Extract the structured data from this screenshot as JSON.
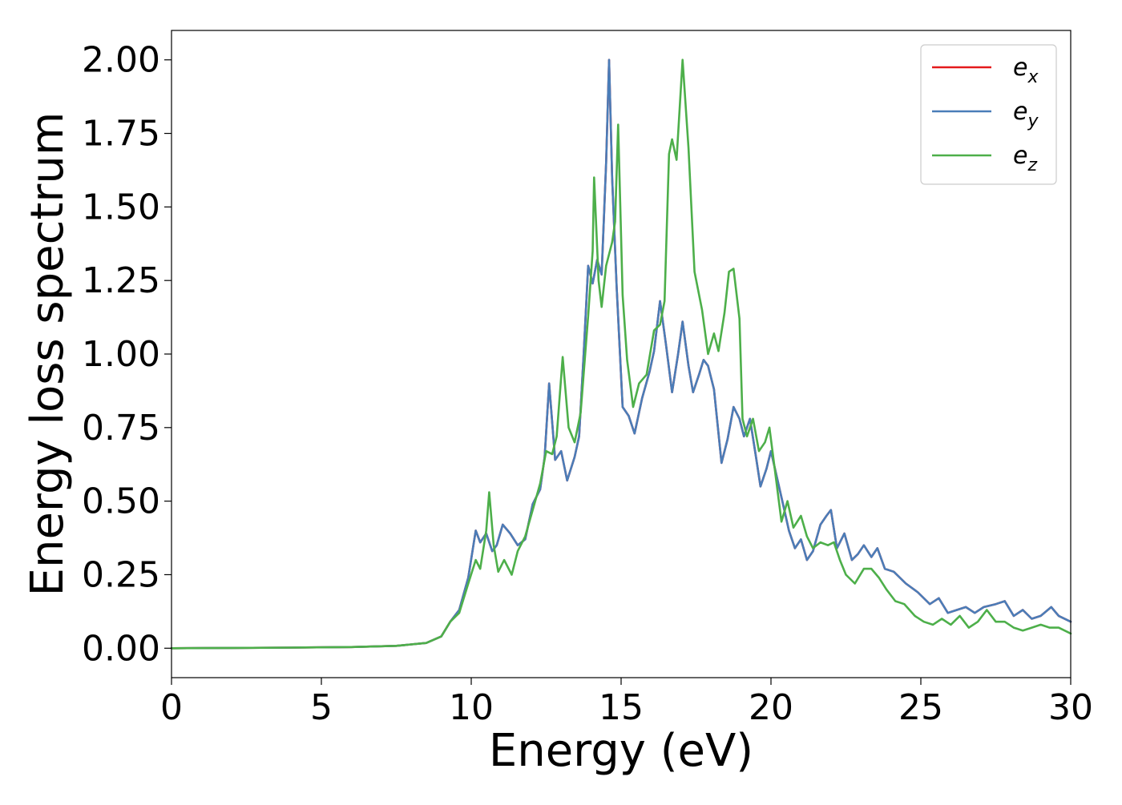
{
  "chart_data": {
    "type": "line",
    "title": "",
    "xlabel": "Energy (eV)",
    "ylabel": "Energy loss spectrum",
    "xlim": [
      0,
      30
    ],
    "ylim": [
      -0.1,
      2.1
    ],
    "xticks": [
      "0",
      "5",
      "10",
      "15",
      "20",
      "25",
      "30"
    ],
    "yticks": [
      "0.00",
      "0.25",
      "0.50",
      "0.75",
      "1.00",
      "1.25",
      "1.50",
      "1.75",
      "2.00"
    ],
    "grid": false,
    "legend_position": "top-right",
    "series": [
      {
        "name": "e_x",
        "legend_main": "e",
        "legend_sub": "x",
        "color": "#e41a1c",
        "points": [
          [
            0,
            0
          ],
          [
            2,
            0.001
          ],
          [
            4,
            0.002
          ],
          [
            6,
            0.004
          ],
          [
            7.5,
            0.008
          ],
          [
            8.5,
            0.018
          ],
          [
            9.0,
            0.04
          ],
          [
            9.3,
            0.09
          ],
          [
            9.6,
            0.13
          ],
          [
            9.9,
            0.24
          ],
          [
            10.15,
            0.4
          ],
          [
            10.3,
            0.36
          ],
          [
            10.5,
            0.39
          ],
          [
            10.7,
            0.33
          ],
          [
            10.85,
            0.35
          ],
          [
            11.05,
            0.42
          ],
          [
            11.3,
            0.39
          ],
          [
            11.55,
            0.35
          ],
          [
            11.8,
            0.37
          ],
          [
            12.05,
            0.49
          ],
          [
            12.3,
            0.54
          ],
          [
            12.45,
            0.65
          ],
          [
            12.6,
            0.9
          ],
          [
            12.8,
            0.64
          ],
          [
            13.0,
            0.67
          ],
          [
            13.2,
            0.57
          ],
          [
            13.45,
            0.65
          ],
          [
            13.6,
            0.72
          ],
          [
            13.75,
            1.0
          ],
          [
            13.9,
            1.3
          ],
          [
            14.05,
            1.24
          ],
          [
            14.2,
            1.32
          ],
          [
            14.35,
            1.27
          ],
          [
            14.5,
            1.65
          ],
          [
            14.6,
            2.0
          ],
          [
            14.7,
            1.6
          ],
          [
            14.85,
            1.23
          ],
          [
            15.05,
            0.82
          ],
          [
            15.25,
            0.79
          ],
          [
            15.45,
            0.73
          ],
          [
            15.7,
            0.85
          ],
          [
            15.95,
            0.94
          ],
          [
            16.1,
            1.01
          ],
          [
            16.3,
            1.18
          ],
          [
            16.5,
            1.03
          ],
          [
            16.7,
            0.87
          ],
          [
            16.9,
            1.0
          ],
          [
            17.05,
            1.11
          ],
          [
            17.25,
            0.96
          ],
          [
            17.4,
            0.87
          ],
          [
            17.6,
            0.93
          ],
          [
            17.75,
            0.98
          ],
          [
            17.9,
            0.96
          ],
          [
            18.1,
            0.88
          ],
          [
            18.35,
            0.63
          ],
          [
            18.55,
            0.71
          ],
          [
            18.75,
            0.82
          ],
          [
            18.95,
            0.78
          ],
          [
            19.1,
            0.72
          ],
          [
            19.3,
            0.78
          ],
          [
            19.5,
            0.65
          ],
          [
            19.65,
            0.55
          ],
          [
            19.85,
            0.61
          ],
          [
            20.0,
            0.67
          ],
          [
            20.2,
            0.58
          ],
          [
            20.4,
            0.49
          ],
          [
            20.6,
            0.4
          ],
          [
            20.8,
            0.34
          ],
          [
            21.0,
            0.37
          ],
          [
            21.2,
            0.3
          ],
          [
            21.4,
            0.33
          ],
          [
            21.65,
            0.42
          ],
          [
            21.85,
            0.45
          ],
          [
            22.0,
            0.47
          ],
          [
            22.2,
            0.34
          ],
          [
            22.45,
            0.39
          ],
          [
            22.7,
            0.3
          ],
          [
            22.9,
            0.32
          ],
          [
            23.1,
            0.35
          ],
          [
            23.35,
            0.31
          ],
          [
            23.55,
            0.34
          ],
          [
            23.8,
            0.27
          ],
          [
            24.1,
            0.26
          ],
          [
            24.5,
            0.22
          ],
          [
            24.9,
            0.19
          ],
          [
            25.3,
            0.15
          ],
          [
            25.6,
            0.17
          ],
          [
            25.9,
            0.12
          ],
          [
            26.2,
            0.13
          ],
          [
            26.5,
            0.14
          ],
          [
            26.8,
            0.12
          ],
          [
            27.1,
            0.14
          ],
          [
            27.5,
            0.15
          ],
          [
            27.8,
            0.16
          ],
          [
            28.1,
            0.11
          ],
          [
            28.4,
            0.13
          ],
          [
            28.7,
            0.1
          ],
          [
            29.0,
            0.11
          ],
          [
            29.35,
            0.14
          ],
          [
            29.6,
            0.11
          ],
          [
            30.0,
            0.09
          ]
        ]
      },
      {
        "name": "e_y",
        "legend_main": "e",
        "legend_sub": "y",
        "color": "#4a7db8",
        "points": [
          [
            0,
            0
          ],
          [
            2,
            0.001
          ],
          [
            4,
            0.002
          ],
          [
            6,
            0.004
          ],
          [
            7.5,
            0.008
          ],
          [
            8.5,
            0.018
          ],
          [
            9.0,
            0.04
          ],
          [
            9.3,
            0.09
          ],
          [
            9.6,
            0.13
          ],
          [
            9.9,
            0.24
          ],
          [
            10.15,
            0.4
          ],
          [
            10.3,
            0.36
          ],
          [
            10.5,
            0.39
          ],
          [
            10.7,
            0.33
          ],
          [
            10.85,
            0.35
          ],
          [
            11.05,
            0.42
          ],
          [
            11.3,
            0.39
          ],
          [
            11.55,
            0.35
          ],
          [
            11.8,
            0.37
          ],
          [
            12.05,
            0.49
          ],
          [
            12.3,
            0.54
          ],
          [
            12.45,
            0.65
          ],
          [
            12.6,
            0.9
          ],
          [
            12.8,
            0.64
          ],
          [
            13.0,
            0.67
          ],
          [
            13.2,
            0.57
          ],
          [
            13.45,
            0.65
          ],
          [
            13.6,
            0.72
          ],
          [
            13.75,
            1.0
          ],
          [
            13.9,
            1.3
          ],
          [
            14.05,
            1.24
          ],
          [
            14.2,
            1.32
          ],
          [
            14.35,
            1.27
          ],
          [
            14.5,
            1.65
          ],
          [
            14.6,
            2.0
          ],
          [
            14.7,
            1.6
          ],
          [
            14.85,
            1.23
          ],
          [
            15.05,
            0.82
          ],
          [
            15.25,
            0.79
          ],
          [
            15.45,
            0.73
          ],
          [
            15.7,
            0.85
          ],
          [
            15.95,
            0.94
          ],
          [
            16.1,
            1.01
          ],
          [
            16.3,
            1.18
          ],
          [
            16.5,
            1.03
          ],
          [
            16.7,
            0.87
          ],
          [
            16.9,
            1.0
          ],
          [
            17.05,
            1.11
          ],
          [
            17.25,
            0.96
          ],
          [
            17.4,
            0.87
          ],
          [
            17.6,
            0.93
          ],
          [
            17.75,
            0.98
          ],
          [
            17.9,
            0.96
          ],
          [
            18.1,
            0.88
          ],
          [
            18.35,
            0.63
          ],
          [
            18.55,
            0.71
          ],
          [
            18.75,
            0.82
          ],
          [
            18.95,
            0.78
          ],
          [
            19.1,
            0.72
          ],
          [
            19.3,
            0.78
          ],
          [
            19.5,
            0.65
          ],
          [
            19.65,
            0.55
          ],
          [
            19.85,
            0.61
          ],
          [
            20.0,
            0.67
          ],
          [
            20.2,
            0.58
          ],
          [
            20.4,
            0.49
          ],
          [
            20.6,
            0.4
          ],
          [
            20.8,
            0.34
          ],
          [
            21.0,
            0.37
          ],
          [
            21.2,
            0.3
          ],
          [
            21.4,
            0.33
          ],
          [
            21.65,
            0.42
          ],
          [
            21.85,
            0.45
          ],
          [
            22.0,
            0.47
          ],
          [
            22.2,
            0.34
          ],
          [
            22.45,
            0.39
          ],
          [
            22.7,
            0.3
          ],
          [
            22.9,
            0.32
          ],
          [
            23.1,
            0.35
          ],
          [
            23.35,
            0.31
          ],
          [
            23.55,
            0.34
          ],
          [
            23.8,
            0.27
          ],
          [
            24.1,
            0.26
          ],
          [
            24.5,
            0.22
          ],
          [
            24.9,
            0.19
          ],
          [
            25.3,
            0.15
          ],
          [
            25.6,
            0.17
          ],
          [
            25.9,
            0.12
          ],
          [
            26.2,
            0.13
          ],
          [
            26.5,
            0.14
          ],
          [
            26.8,
            0.12
          ],
          [
            27.1,
            0.14
          ],
          [
            27.5,
            0.15
          ],
          [
            27.8,
            0.16
          ],
          [
            28.1,
            0.11
          ],
          [
            28.4,
            0.13
          ],
          [
            28.7,
            0.1
          ],
          [
            29.0,
            0.11
          ],
          [
            29.35,
            0.14
          ],
          [
            29.6,
            0.11
          ],
          [
            30.0,
            0.09
          ]
        ]
      },
      {
        "name": "e_z",
        "legend_main": "e",
        "legend_sub": "z",
        "color": "#4daf4a",
        "points": [
          [
            0,
            0
          ],
          [
            2,
            0.001
          ],
          [
            4,
            0.002
          ],
          [
            6,
            0.004
          ],
          [
            7.5,
            0.008
          ],
          [
            8.5,
            0.018
          ],
          [
            9.0,
            0.04
          ],
          [
            9.3,
            0.09
          ],
          [
            9.6,
            0.12
          ],
          [
            9.9,
            0.22
          ],
          [
            10.15,
            0.3
          ],
          [
            10.3,
            0.27
          ],
          [
            10.5,
            0.4
          ],
          [
            10.6,
            0.53
          ],
          [
            10.75,
            0.35
          ],
          [
            10.9,
            0.26
          ],
          [
            11.1,
            0.3
          ],
          [
            11.35,
            0.25
          ],
          [
            11.55,
            0.33
          ],
          [
            11.8,
            0.38
          ],
          [
            12.05,
            0.47
          ],
          [
            12.3,
            0.56
          ],
          [
            12.5,
            0.67
          ],
          [
            12.7,
            0.66
          ],
          [
            12.85,
            0.72
          ],
          [
            13.05,
            0.99
          ],
          [
            13.25,
            0.75
          ],
          [
            13.45,
            0.7
          ],
          [
            13.65,
            0.8
          ],
          [
            13.9,
            1.13
          ],
          [
            14.05,
            1.35
          ],
          [
            14.1,
            1.6
          ],
          [
            14.25,
            1.25
          ],
          [
            14.35,
            1.16
          ],
          [
            14.5,
            1.3
          ],
          [
            14.7,
            1.38
          ],
          [
            14.8,
            1.45
          ],
          [
            14.9,
            1.78
          ],
          [
            15.05,
            1.2
          ],
          [
            15.2,
            0.98
          ],
          [
            15.4,
            0.82
          ],
          [
            15.6,
            0.9
          ],
          [
            15.85,
            0.93
          ],
          [
            16.1,
            1.08
          ],
          [
            16.3,
            1.1
          ],
          [
            16.45,
            1.18
          ],
          [
            16.6,
            1.68
          ],
          [
            16.7,
            1.73
          ],
          [
            16.85,
            1.66
          ],
          [
            17.05,
            2.0
          ],
          [
            17.25,
            1.7
          ],
          [
            17.45,
            1.28
          ],
          [
            17.7,
            1.15
          ],
          [
            17.9,
            1.0
          ],
          [
            18.1,
            1.07
          ],
          [
            18.25,
            1.01
          ],
          [
            18.45,
            1.14
          ],
          [
            18.6,
            1.28
          ],
          [
            18.75,
            1.29
          ],
          [
            18.95,
            1.12
          ],
          [
            19.05,
            0.78
          ],
          [
            19.2,
            0.72
          ],
          [
            19.4,
            0.78
          ],
          [
            19.6,
            0.67
          ],
          [
            19.8,
            0.7
          ],
          [
            19.95,
            0.75
          ],
          [
            20.2,
            0.55
          ],
          [
            20.35,
            0.43
          ],
          [
            20.55,
            0.5
          ],
          [
            20.75,
            0.41
          ],
          [
            21.0,
            0.45
          ],
          [
            21.2,
            0.38
          ],
          [
            21.4,
            0.34
          ],
          [
            21.65,
            0.36
          ],
          [
            21.9,
            0.35
          ],
          [
            22.1,
            0.36
          ],
          [
            22.3,
            0.3
          ],
          [
            22.5,
            0.25
          ],
          [
            22.8,
            0.22
          ],
          [
            23.1,
            0.27
          ],
          [
            23.35,
            0.27
          ],
          [
            23.6,
            0.24
          ],
          [
            23.85,
            0.2
          ],
          [
            24.15,
            0.16
          ],
          [
            24.45,
            0.15
          ],
          [
            24.8,
            0.11
          ],
          [
            25.1,
            0.09
          ],
          [
            25.4,
            0.08
          ],
          [
            25.7,
            0.1
          ],
          [
            26.0,
            0.08
          ],
          [
            26.3,
            0.11
          ],
          [
            26.6,
            0.07
          ],
          [
            26.9,
            0.09
          ],
          [
            27.2,
            0.13
          ],
          [
            27.5,
            0.09
          ],
          [
            27.8,
            0.09
          ],
          [
            28.1,
            0.07
          ],
          [
            28.4,
            0.06
          ],
          [
            28.7,
            0.07
          ],
          [
            29.0,
            0.08
          ],
          [
            29.3,
            0.07
          ],
          [
            29.6,
            0.07
          ],
          [
            30.0,
            0.05
          ]
        ]
      }
    ]
  }
}
